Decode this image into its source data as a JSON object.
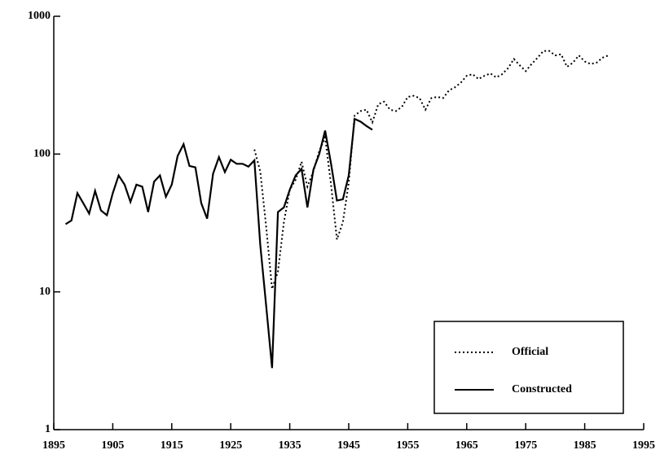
{
  "chart_data": {
    "type": "line",
    "log_y": true,
    "legend": "lower right",
    "xlim": [
      1895,
      1995
    ],
    "xticks": [
      1895,
      1905,
      1915,
      1925,
      1935,
      1945,
      1955,
      1965,
      1975,
      1985,
      1995
    ],
    "ylim": [
      1,
      1000
    ],
    "yticks": [
      1,
      10,
      100,
      1000
    ],
    "series": [
      {
        "name": "Official",
        "color": "#000000",
        "dash": "dotted",
        "x": [
          1929,
          1930,
          1931,
          1932,
          1933,
          1934,
          1935,
          1936,
          1937,
          1938,
          1939,
          1940,
          1941,
          1942,
          1943,
          1944,
          1945,
          1946,
          1947,
          1948,
          1949,
          1950,
          1951,
          1952,
          1953,
          1954,
          1955,
          1956,
          1957,
          1958,
          1959,
          1960,
          1961,
          1962,
          1963,
          1964,
          1965,
          1966,
          1967,
          1968,
          1969,
          1970,
          1971,
          1972,
          1973,
          1974,
          1975,
          1976,
          1977,
          1978,
          1979,
          1980,
          1981,
          1982,
          1983,
          1984,
          1985,
          1986,
          1987,
          1988,
          1989
        ],
        "values": [
          108,
          75,
          30,
          10.5,
          14,
          32,
          55,
          65,
          88,
          58,
          75,
          105,
          132,
          60,
          24,
          32,
          62,
          190,
          205,
          210,
          170,
          230,
          240,
          210,
          205,
          220,
          260,
          265,
          255,
          210,
          255,
          260,
          255,
          290,
          305,
          330,
          370,
          380,
          350,
          370,
          385,
          360,
          380,
          420,
          490,
          440,
          400,
          450,
          500,
          560,
          560,
          520,
          530,
          430,
          460,
          520,
          470,
          450,
          460,
          500,
          520
        ]
      },
      {
        "name": "Constructed",
        "color": "#000000",
        "dash": "solid",
        "x": [
          1897,
          1898,
          1899,
          1900,
          1901,
          1902,
          1903,
          1904,
          1905,
          1906,
          1907,
          1908,
          1909,
          1910,
          1911,
          1912,
          1913,
          1914,
          1915,
          1916,
          1917,
          1918,
          1919,
          1920,
          1921,
          1922,
          1923,
          1924,
          1925,
          1926,
          1927,
          1928,
          1929,
          1930,
          1931,
          1932,
          1933,
          1934,
          1935,
          1936,
          1937,
          1938,
          1939,
          1940,
          1941,
          1942,
          1943,
          1944,
          1945,
          1946,
          1947,
          1948,
          1949
        ],
        "values": [
          31,
          33,
          52,
          44,
          37,
          54,
          39,
          36,
          52,
          70,
          60,
          45,
          60,
          58,
          38,
          63,
          70,
          49,
          60,
          97,
          118,
          82,
          80,
          44,
          34,
          72,
          95,
          74,
          91,
          85,
          85,
          81,
          90,
          22,
          8,
          2.8,
          38,
          41,
          55,
          70,
          78,
          41,
          77,
          100,
          148,
          85,
          46,
          47,
          70,
          180,
          172,
          160,
          150
        ]
      }
    ]
  }
}
